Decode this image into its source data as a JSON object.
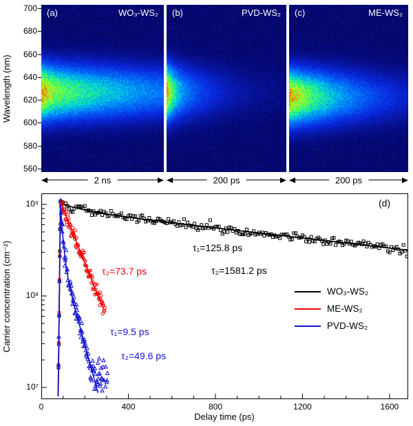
{
  "top_panels": {
    "y_axis_label": "Wavelength (nm)",
    "y_ticks": [
      700,
      680,
      660,
      640,
      620,
      600,
      580,
      560
    ]
  },
  "chart_data": [
    {
      "type": "heatmap",
      "tag": "(a)",
      "title": "WO₃-WS₂",
      "time_label": "2 ns",
      "time_window_ps": 2000,
      "wavelength_range_nm": [
        560,
        700
      ],
      "emission_center_nm": 627,
      "emission_sigma_nm": 13,
      "decay_components": [
        {
          "amp": 0.3,
          "tau_ps": 125.8
        },
        {
          "amp": 0.7,
          "tau_ps": 1581.2
        }
      ]
    },
    {
      "type": "heatmap",
      "tag": "(b)",
      "title": "PVD-WS₂",
      "time_label": "200 ps",
      "time_window_ps": 200,
      "wavelength_range_nm": [
        560,
        700
      ],
      "emission_center_nm": 627,
      "emission_sigma_nm": 13,
      "decay_components": [
        {
          "amp": 0.6,
          "tau_ps": 9.5
        },
        {
          "amp": 0.4,
          "tau_ps": 49.6
        }
      ]
    },
    {
      "type": "heatmap",
      "tag": "(c)",
      "title": "ME-WS₂",
      "time_label": "200 ps",
      "time_window_ps": 200,
      "wavelength_range_nm": [
        560,
        700
      ],
      "emission_center_nm": 623,
      "emission_sigma_nm": 13,
      "decay_components": [
        {
          "amp": 0.92,
          "tau_ps": 73.7
        }
      ]
    },
    {
      "type": "line",
      "tag": "(d)",
      "xlabel": "Delay time (ps)",
      "ylabel": "Carrier concentration (cm⁻²)",
      "xlim_ps": [
        0,
        1685
      ],
      "ylim": [
        10000000.0,
        1000000000.0
      ],
      "x_ticks": [
        0,
        400,
        800,
        1200,
        1600
      ],
      "y_ticks": [
        {
          "label": "10⁹",
          "value": 1000000000.0
        },
        {
          "label": "10⁸",
          "value": 100000000.0
        },
        {
          "label": "10⁷",
          "value": 10000000.0
        }
      ],
      "rise_t0_ps": 88,
      "series": [
        {
          "name": "WO₃-WS₂",
          "color": "#000000",
          "marker": "square",
          "peak": 1020000000.0,
          "t_end": 1680,
          "t_end_fit": 1685,
          "dt": 8,
          "noise": 0.055,
          "components": [
            {
              "frac": 0.15,
              "tau_ps": 125.8
            },
            {
              "frac": 0.85,
              "tau_ps": 1581.2
            }
          ]
        },
        {
          "name": "ME-WS₂",
          "color": "#ee0000",
          "marker": "circle",
          "peak": 1050000000.0,
          "t_end": 292,
          "t_end_fit": 285,
          "dt": 2,
          "noise": 0.1,
          "components": [
            {
              "frac": 1.0,
              "tau_ps": 73.7
            }
          ]
        },
        {
          "name": "PVD-WS₂",
          "color": "#1212d0",
          "marker": "triangle",
          "peak": 1000000000.0,
          "t_end": 305,
          "t_end_fit": 270,
          "dt": 2,
          "noise": 0.13,
          "floor": 12000000.0,
          "components": [
            {
              "frac": 0.72,
              "tau_ps": 9.5
            },
            {
              "frac": 0.28,
              "tau_ps": 49.6
            }
          ]
        }
      ],
      "annotations": [
        {
          "text": "τ₁=125.8 ps",
          "color": "#000000"
        },
        {
          "text": "τ₂=1581.2 ps",
          "color": "#000000"
        },
        {
          "text": "τ₂=73.7 ps",
          "color": "#ee0000"
        },
        {
          "text": "τ₁=9.5 ps",
          "color": "#1212d0"
        },
        {
          "text": "τ₂=49.6 ps",
          "color": "#1212d0"
        }
      ]
    }
  ]
}
